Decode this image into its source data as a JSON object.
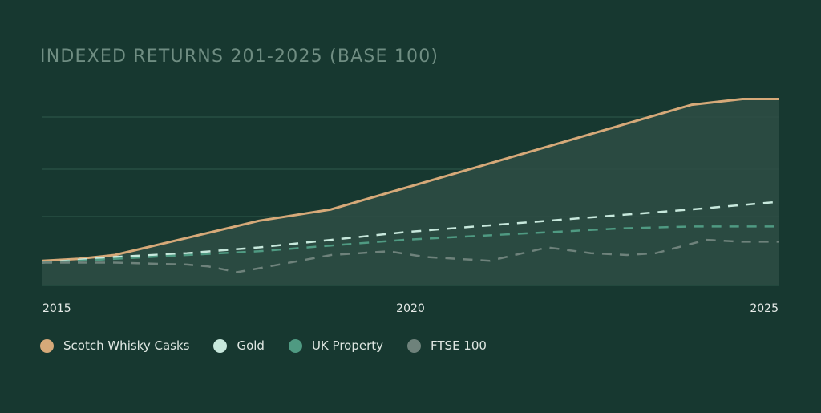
{
  "title": "INDEXED RETURNS 201-2025 (BASE 100)",
  "colors": {
    "background": "#173830",
    "grid": "#2f5a4c",
    "area_fill": "#2e4d44",
    "whisky": "#d6a979",
    "gold": "#c7e8dc",
    "property": "#4f9a82",
    "ftse": "#6e827b"
  },
  "chart_data": {
    "type": "line",
    "title": "INDEXED RETURNS 201-2025 (BASE 100)",
    "xlabel": "",
    "ylabel": "",
    "x_ticks": [
      "2015",
      "2020",
      "2025"
    ],
    "xlim": [
      2015,
      2025.2
    ],
    "ylim": [
      90,
      200
    ],
    "grid": true,
    "legend_position": "bottom-left",
    "series": [
      {
        "name": "Scotch Whisky Casks",
        "style": "solid",
        "fill_area": true,
        "x": [
          2015,
          2015.5,
          2016,
          2017,
          2018,
          2019,
          2020,
          2021,
          2022,
          2023,
          2024,
          2024.7,
          2025.2
        ],
        "y": [
          103,
          104,
          106,
          115,
          124,
          130,
          141,
          152,
          163,
          174,
          185,
          188,
          188
        ]
      },
      {
        "name": "Gold",
        "style": "dashed",
        "x": [
          2015,
          2016,
          2017,
          2018,
          2019,
          2020,
          2021,
          2022,
          2023,
          2024,
          2025.2
        ],
        "y": [
          102,
          105,
          107,
          110,
          114,
          118,
          121,
          124,
          127,
          130,
          134
        ]
      },
      {
        "name": "UK Property",
        "style": "dashed",
        "x": [
          2015,
          2016,
          2017,
          2018,
          2019,
          2020,
          2021,
          2022,
          2023,
          2024,
          2025.2
        ],
        "y": [
          102,
          104,
          106,
          108,
          111,
          114,
          116,
          118,
          120,
          121,
          121
        ]
      },
      {
        "name": "FTSE 100",
        "style": "dashed",
        "x": [
          2015,
          2016,
          2017,
          2017.3,
          2017.7,
          2018,
          2019,
          2019.8,
          2020.3,
          2021.2,
          2022,
          2022.6,
          2023.1,
          2023.5,
          2024.2,
          2024.7,
          2025.2
        ],
        "y": [
          102,
          102,
          101,
          100,
          97,
          99,
          106,
          108,
          105,
          103,
          110,
          107,
          106,
          107,
          114,
          113,
          113
        ]
      }
    ]
  },
  "legend": [
    {
      "label": "Scotch Whisky Casks",
      "color": "#d6a979"
    },
    {
      "label": "Gold",
      "color": "#c7e8dc"
    },
    {
      "label": "UK Property",
      "color": "#4f9a82"
    },
    {
      "label": "FTSE 100",
      "color": "#6e827b"
    }
  ]
}
